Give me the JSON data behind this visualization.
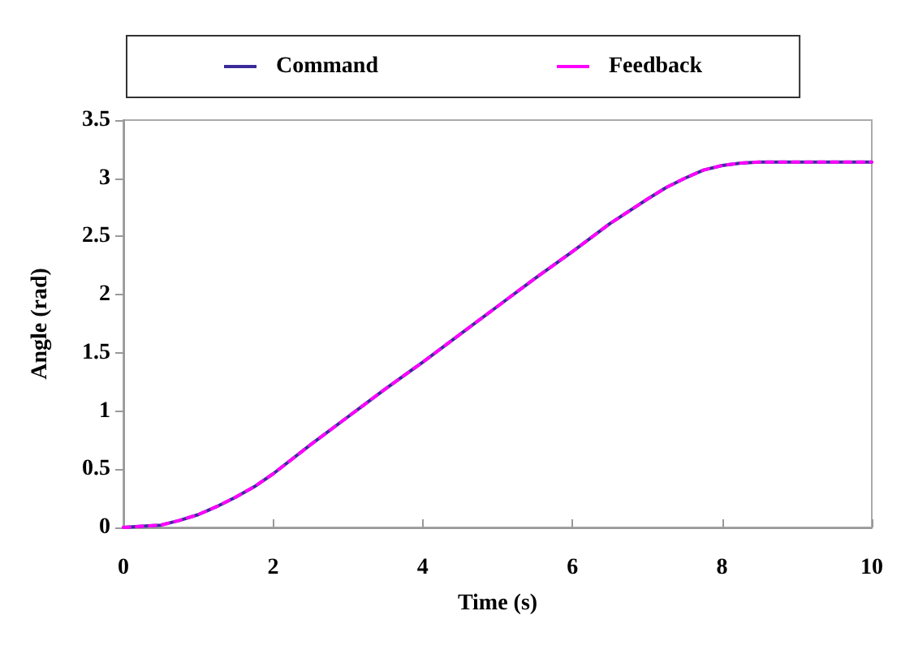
{
  "chart_data": {
    "type": "line",
    "xlabel": "Time (s)",
    "ylabel": "Angle (rad)",
    "x": [
      0,
      0.25,
      0.5,
      0.75,
      1,
      1.25,
      1.5,
      1.75,
      2,
      2.5,
      3,
      3.5,
      4,
      4.5,
      5,
      5.5,
      6,
      6.5,
      7,
      7.25,
      7.5,
      7.75,
      8,
      8.25,
      8.5,
      9,
      9.5,
      10
    ],
    "series": [
      {
        "name": "Command",
        "color": "#3a2a9a",
        "line_style": "solid",
        "values": [
          0,
          0.01,
          0.02,
          0.06,
          0.11,
          0.18,
          0.26,
          0.35,
          0.46,
          0.71,
          0.95,
          1.19,
          1.42,
          1.66,
          1.9,
          2.14,
          2.37,
          2.61,
          2.82,
          2.92,
          3.0,
          3.07,
          3.11,
          3.13,
          3.14,
          3.14,
          3.14,
          3.14
        ]
      },
      {
        "name": "Feedback",
        "color": "#ff00ff",
        "line_style": "dashed",
        "values": [
          0,
          0.01,
          0.02,
          0.06,
          0.11,
          0.18,
          0.26,
          0.35,
          0.46,
          0.71,
          0.95,
          1.19,
          1.42,
          1.66,
          1.9,
          2.14,
          2.37,
          2.61,
          2.82,
          2.92,
          3.0,
          3.07,
          3.11,
          3.13,
          3.14,
          3.14,
          3.14,
          3.14
        ]
      }
    ],
    "xlim": [
      0,
      10
    ],
    "xticks": [
      0,
      2,
      4,
      6,
      8,
      10
    ],
    "ylim": [
      0,
      3.5
    ],
    "yticks": [
      0,
      0.5,
      1,
      1.5,
      2,
      2.5,
      3,
      3.5
    ],
    "grid": false,
    "legend": "top",
    "marker": "none"
  }
}
